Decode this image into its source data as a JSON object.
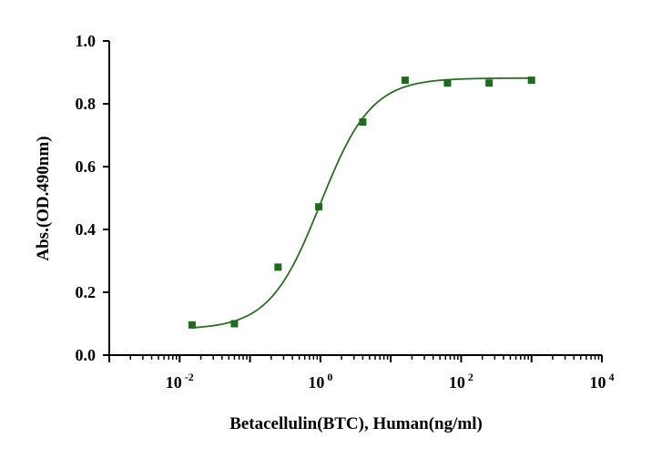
{
  "chart_data": {
    "type": "scatter",
    "xlabel": "Betacellulin(BTC), Human(ng/ml)",
    "ylabel": "Abs.(OD.490nm)",
    "x_scale": "log10",
    "xlim": [
      0.001,
      10000
    ],
    "ylim": [
      0.0,
      1.0
    ],
    "x_ticks": [
      {
        "base": "10",
        "exp": "-2",
        "value": 0.01
      },
      {
        "base": "10",
        "exp": "0",
        "value": 1
      },
      {
        "base": "10",
        "exp": "2",
        "value": 100
      },
      {
        "base": "10",
        "exp": "4",
        "value": 10000
      }
    ],
    "y_ticks": [
      {
        "label": "0.0",
        "value": 0.0
      },
      {
        "label": "0.2",
        "value": 0.2
      },
      {
        "label": "0.4",
        "value": 0.4
      },
      {
        "label": "0.6",
        "value": 0.6
      },
      {
        "label": "0.8",
        "value": 0.8
      },
      {
        "label": "1.0",
        "value": 1.0
      }
    ],
    "grid": false,
    "series": [
      {
        "x": [
          0.015,
          0.06,
          0.25,
          0.95,
          4.0,
          16.0,
          64.0,
          250.0,
          1000.0
        ],
        "y": [
          0.096,
          0.1,
          0.28,
          0.472,
          0.742,
          0.875,
          0.866,
          0.866,
          0.875
        ],
        "marker": "square",
        "color": "#1e6b1e"
      }
    ],
    "fit_curve": {
      "type": "4PL",
      "bottom": 0.082,
      "top": 0.882,
      "ec50": 1.0,
      "hill": 1.2,
      "x_range": [
        0.015,
        1000.0
      ],
      "color": "#2a6e23"
    }
  }
}
